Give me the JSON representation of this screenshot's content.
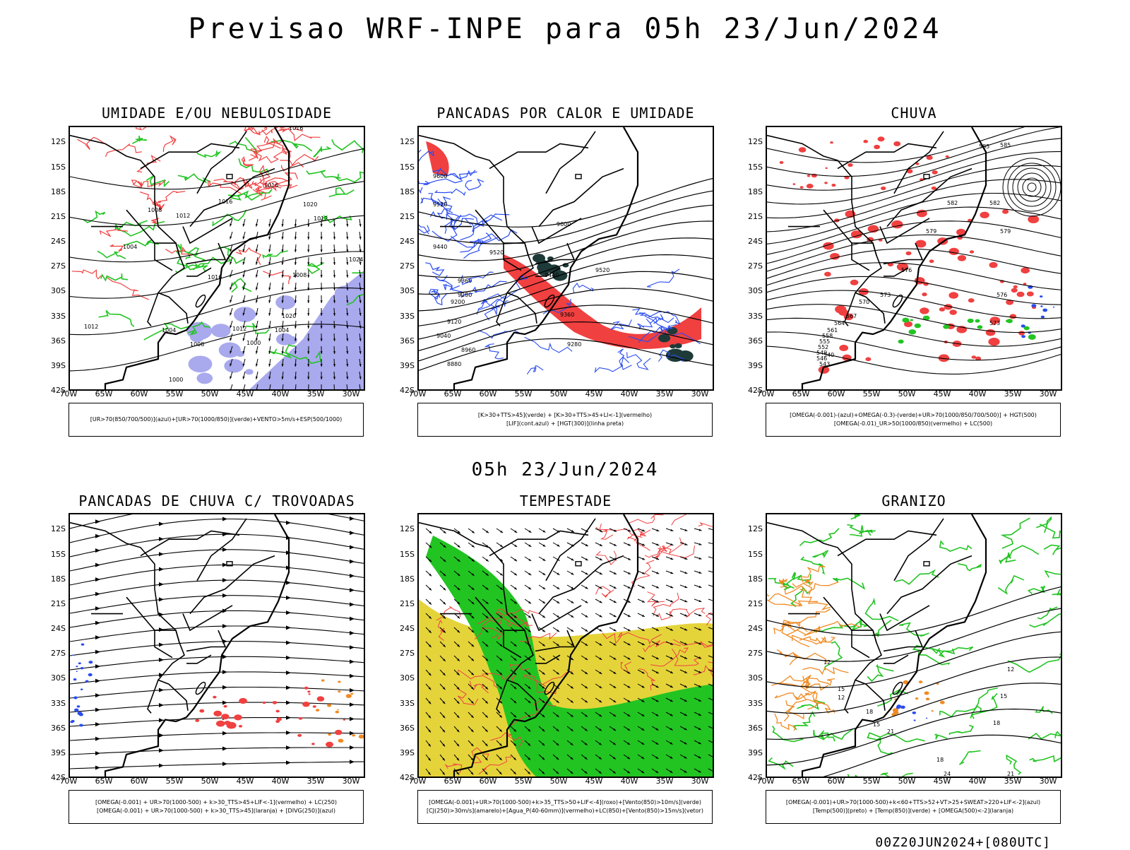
{
  "title": "Previsao WRF-INPE  para 05h 23/Jun/2024",
  "mid_title": "05h 23/Jun/2024",
  "footer": "00Z20JUN2024+[080UTC]",
  "lat_labels": [
    "12S",
    "15S",
    "18S",
    "21S",
    "24S",
    "27S",
    "30S",
    "33S",
    "36S",
    "39S",
    "42S"
  ],
  "lon_labels": [
    "70W",
    "65W",
    "60W",
    "55W",
    "50W",
    "45W",
    "40W",
    "35W",
    "30W"
  ],
  "panels": [
    {
      "title": "UMIDADE E/OU NEBULOSIDADE",
      "legend": [
        "[UR>70(850/700/500)](azul)+[UR>70(1000/850)](verde)+VENTO>5m/s+ESP(500/1000)"
      ],
      "contour_labels": [
        "1016",
        "1008",
        "1012",
        "1016",
        "1020",
        "1004",
        "1000",
        "1016",
        "1012",
        "1016",
        "1020",
        "1024",
        "1008",
        "1004",
        "1012",
        "1000",
        "1004",
        "1008",
        "1012"
      ]
    },
    {
      "title": "PANCADAS POR CALOR E UMIDADE",
      "legend": [
        "[K>30+TTS>45](verde) + [K>30+TTS>45+LI<-1](vermelho)",
        "[LIF](cont.azul) + [HGT(300)](linha preta)"
      ],
      "contour_labels": [
        "9600",
        "9520",
        "9440",
        "9520",
        "9600",
        "9360",
        "9280",
        "9200",
        "9120",
        "9040",
        "8960",
        "8880",
        "9360",
        "9280",
        "9440",
        "9520"
      ]
    },
    {
      "title": "CHUVA",
      "legend": [
        "[OMEGA(-0.001)-(azul)+OMEGA(-0.3)-(verde)+UR>70(1000/850/700/500)] + HGT(500)",
        "[OMEGA(-0.01)_UR>50(1000/850)(vermelho) + LC(500)"
      ],
      "contour_labels": [
        "585",
        "582",
        "579",
        "576",
        "573",
        "570",
        "567",
        "564",
        "561",
        "558",
        "555",
        "552",
        "549",
        "546",
        "543",
        "540",
        "585",
        "582",
        "579",
        "576",
        "573"
      ]
    },
    {
      "title": "PANCADAS DE CHUVA C/ TROVOADAS",
      "legend": [
        "[OMEGA(-0.001) + UR>70(1000-500) + k>30_TTS>45+LIF<-1](vermelho) + LC(250)",
        "[OMEGA(-0.001) + UR>70(1000-500) + k>30_TTS>45](laranja) + [DIVG(250)](azul)"
      ],
      "contour_labels": []
    },
    {
      "title": "TEMPESTADE",
      "legend": [
        "[OMEGA(-0.001)+UR>70(1000-500)+k>35_TTS>50+LIF<-4](roxo)+[Vento(850)>10m/s](verde)",
        "[CJ(250)>30m/s](amarelo)+[Agua_P(40-60mm)](vermelho)+LC(850)+[Vento(850)>15m/s](vetor)"
      ],
      "contour_labels": []
    },
    {
      "title": "GRANIZO",
      "legend": [
        "[OMEGA(-0.001)+UR>70(1000-500)+k<60+TTS>52+VT>25+SWEAT>220+LIF<-2](azul)",
        "[Temp(500)](preto) + [Temp(850)](verde) + [OMEGA(500)<-2](laranja)"
      ],
      "contour_labels": [
        "12",
        "15",
        "18",
        "21",
        "24",
        "12",
        "15",
        "18",
        "21",
        "12",
        "15",
        "18"
      ]
    }
  ],
  "colors": {
    "red": "#f04040",
    "green": "#22c422",
    "blue": "#2a4cf0",
    "lightblue": "#a9a9ee",
    "darkteal": "#1d3a38",
    "yellow": "#e4d43a",
    "orange": "#f08a22",
    "contour": "#000000"
  }
}
